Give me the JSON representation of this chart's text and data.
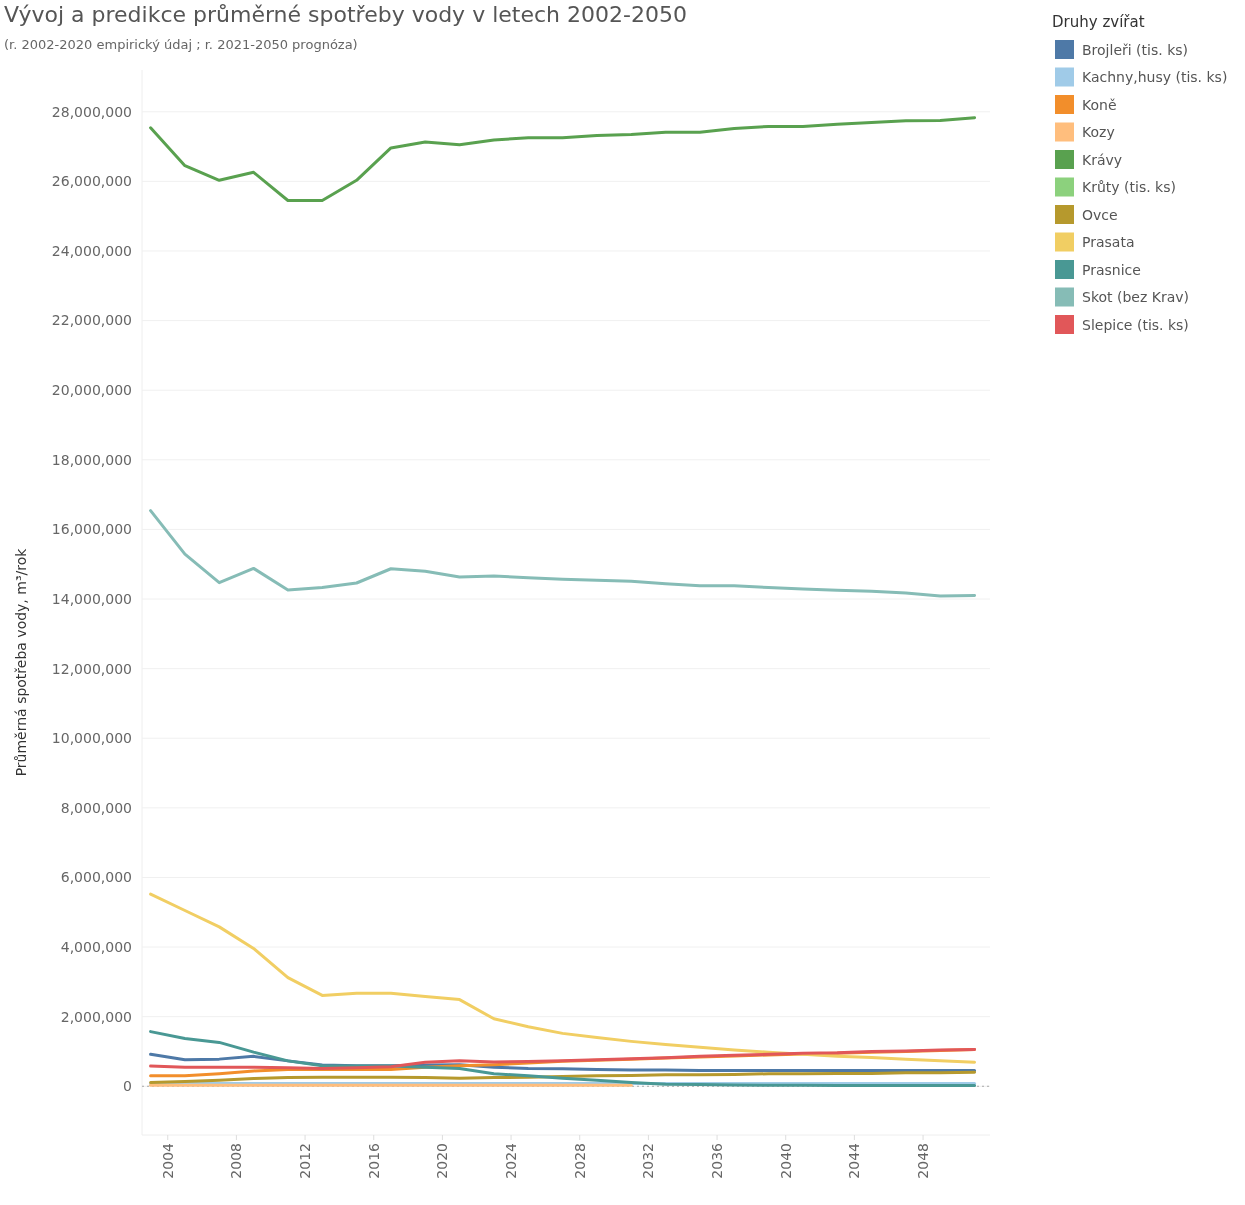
{
  "chart_data": {
    "type": "line",
    "title": "Vývoj a predikce průměrné spotřeby vody v letech 2002-2050",
    "subtitle": "(r. 2002-2020 empirický údaj ; r. 2021-2050 prognóza)",
    "ylabel": "Průměrná spotřeba vody, m³/rok",
    "legend_title": "Druhy zvířat",
    "legend": "right",
    "grid": "y",
    "x": [
      2003,
      2005,
      2007,
      2009,
      2011,
      2013,
      2015,
      2017,
      2019,
      2021,
      2023,
      2025,
      2027,
      2029,
      2031,
      2033,
      2035,
      2037,
      2039,
      2041,
      2043,
      2045,
      2047,
      2049,
      2051
    ],
    "xlim": [
      2002.5,
      2051.9
    ],
    "xticks": [
      2004,
      2008,
      2012,
      2016,
      2020,
      2024,
      2028,
      2032,
      2036,
      2040,
      2044,
      2048
    ],
    "ylim": [
      -1400000,
      29200000
    ],
    "yticks": [
      {
        "value": 0,
        "label": "0"
      },
      {
        "value": 2000000,
        "label": "2,000,000"
      },
      {
        "value": 4000000,
        "label": "4,000,000"
      },
      {
        "value": 6000000,
        "label": "6,000,000"
      },
      {
        "value": 8000000,
        "label": "8,000,000"
      },
      {
        "value": 10000000,
        "label": "10,000,000"
      },
      {
        "value": 12000000,
        "label": "12,000,000"
      },
      {
        "value": 14000000,
        "label": "14,000,000"
      },
      {
        "value": 16000000,
        "label": "16,000,000"
      },
      {
        "value": 18000000,
        "label": "18,000,000"
      },
      {
        "value": 20000000,
        "label": "20,000,000"
      },
      {
        "value": 22000000,
        "label": "22,000,000"
      },
      {
        "value": 24000000,
        "label": "24,000,000"
      },
      {
        "value": 26000000,
        "label": "26,000,000"
      },
      {
        "value": 28000000,
        "label": "28,000,000"
      }
    ],
    "ref_lines": [
      {
        "axis": "y",
        "value": 0,
        "color": "#aaaaaa",
        "line_style": "dotted"
      }
    ],
    "series": [
      {
        "name": "Brojleři (tis. ks)",
        "color": "#4e79a7",
        "values": [
          920000,
          760000,
          780000,
          860000,
          730000,
          610000,
          590000,
          590000,
          610000,
          620000,
          550000,
          510000,
          500000,
          480000,
          470000,
          470000,
          450000,
          450000,
          450000,
          450000,
          450000,
          450000,
          450000,
          450000,
          450000
        ]
      },
      {
        "name": "Kachny,husy (tis. ks)",
        "color": "#a0cbe8",
        "values": [
          80000,
          80000,
          80000,
          80000,
          80000,
          80000,
          80000,
          80000,
          80000,
          80000,
          80000,
          80000,
          80000,
          80000,
          80000,
          80000,
          80000,
          80000,
          80000,
          80000,
          80000,
          80000,
          80000,
          80000,
          80000
        ]
      },
      {
        "name": "Koně",
        "color": "#f28e2b",
        "values": [
          300000,
          300000,
          360000,
          440000,
          480000,
          480000,
          480000,
          480000,
          550000,
          590000,
          620000,
          670000,
          720000,
          750000,
          780000,
          810000,
          840000,
          870000,
          900000,
          930000,
          950000,
          980000,
          1000000,
          1030000,
          1060000
        ]
      },
      {
        "name": "Kozy",
        "color": "#ffbe7d",
        "values": [
          30000,
          30000,
          30000,
          30000,
          30000,
          30000,
          30000,
          30000,
          30000,
          30000,
          30000,
          30000,
          30000,
          30000,
          30000,
          null,
          null,
          null,
          null,
          null,
          null,
          null,
          null,
          null,
          null
        ]
      },
      {
        "name": "Krávy",
        "color": "#59a14f",
        "values": [
          27540000,
          26450000,
          26030000,
          26260000,
          25450000,
          25450000,
          26030000,
          26960000,
          27130000,
          27050000,
          27190000,
          27250000,
          27250000,
          27320000,
          27350000,
          27410000,
          27410000,
          27520000,
          27580000,
          27580000,
          27640000,
          27690000,
          27740000,
          27750000,
          27830000
        ]
      },
      {
        "name": "Krůty (tis. ks)",
        "color": "#8cd17d",
        "values": [
          null,
          null,
          null,
          null,
          null,
          null,
          null,
          null,
          null,
          null,
          null,
          null,
          null,
          null,
          null,
          null,
          null,
          null,
          null,
          null,
          null,
          null,
          null,
          null,
          null
        ]
      },
      {
        "name": "Ovce",
        "color": "#b6992d",
        "values": [
          110000,
          140000,
          170000,
          220000,
          250000,
          260000,
          260000,
          260000,
          250000,
          230000,
          250000,
          260000,
          280000,
          300000,
          310000,
          330000,
          330000,
          340000,
          360000,
          360000,
          370000,
          370000,
          390000,
          390000,
          400000
        ]
      },
      {
        "name": "Prasata",
        "color": "#f1ce63",
        "values": [
          5520000,
          5050000,
          4580000,
          3960000,
          3120000,
          2610000,
          2670000,
          2670000,
          2580000,
          2490000,
          1940000,
          1710000,
          1520000,
          1400000,
          1290000,
          1200000,
          1120000,
          1040000,
          980000,
          920000,
          860000,
          830000,
          780000,
          730000,
          690000
        ]
      },
      {
        "name": "Prasnice",
        "color": "#499894",
        "values": [
          1570000,
          1370000,
          1260000,
          980000,
          730000,
          590000,
          580000,
          580000,
          550000,
          510000,
          360000,
          300000,
          230000,
          170000,
          110000,
          60000,
          50000,
          40000,
          30000,
          30000,
          20000,
          20000,
          20000,
          20000,
          20000
        ]
      },
      {
        "name": "Skot (bez Krav)",
        "color": "#86bcb6",
        "values": [
          16540000,
          15290000,
          14470000,
          14880000,
          14260000,
          14330000,
          14460000,
          14870000,
          14800000,
          14630000,
          14660000,
          14610000,
          14570000,
          14540000,
          14510000,
          14440000,
          14380000,
          14380000,
          14330000,
          14290000,
          14250000,
          14220000,
          14170000,
          14090000,
          14100000
        ]
      },
      {
        "name": "Slepice (tis. ks)",
        "color": "#e15759",
        "values": [
          580000,
          550000,
          550000,
          550000,
          530000,
          510000,
          530000,
          560000,
          690000,
          730000,
          700000,
          710000,
          730000,
          760000,
          790000,
          820000,
          860000,
          890000,
          920000,
          950000,
          960000,
          1000000,
          1010000,
          1040000,
          1060000
        ]
      }
    ]
  }
}
